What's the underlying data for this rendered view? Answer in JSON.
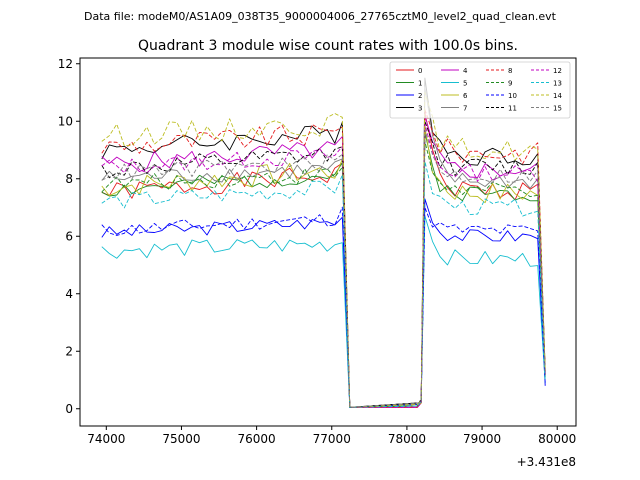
{
  "figure": {
    "suptitle": "Data file: modeM0/AS1A09_038T35_9000004006_27765cztM0_level2_quad_clean.evt",
    "title": "Quadrant 3 module wise count rates with 100.0s bins.",
    "offset_label": "+3.431e8"
  },
  "chart_data": {
    "type": "line",
    "title": "Quadrant 3 module wise count rates with 100.0s bins.",
    "xlabel": "",
    "ylabel": "",
    "x_offset": 343100000,
    "xlim": [
      73650,
      80250
    ],
    "ylim": [
      -0.6,
      12.2
    ],
    "xticks": [
      74000,
      75000,
      76000,
      77000,
      78000,
      79000,
      80000
    ],
    "yticks": [
      0,
      2,
      4,
      6,
      8,
      10,
      12
    ],
    "grid": false,
    "legend_position": "upper-right",
    "segments": [
      {
        "x_start": 73940,
        "step": 100,
        "count": 33
      },
      {
        "x_start": 78240,
        "step": 100,
        "count": 17
      }
    ],
    "gap": {
      "x": [
        77240,
        78140
      ],
      "values": [
        0.05,
        0.2
      ],
      "end_values": [
        0.6,
        1.5
      ]
    },
    "series": [
      {
        "name": "0",
        "color": "#e41a1c",
        "dash": "solid",
        "level": 7.5,
        "edge": 8.6,
        "post": 7.6,
        "amp": 0.35,
        "end": 1.2,
        "spike": 10.3,
        "seed": 1
      },
      {
        "name": "1",
        "color": "#228b22",
        "dash": "solid",
        "level": 7.6,
        "edge": 8.5,
        "post": 7.5,
        "amp": 0.3,
        "end": 1.1,
        "spike": 9.6,
        "seed": 2
      },
      {
        "name": "2",
        "color": "#0000ff",
        "dash": "solid",
        "level": 6.1,
        "edge": 6.8,
        "post": 6.0,
        "amp": 0.25,
        "end": 0.8,
        "spike": 7.3,
        "seed": 3
      },
      {
        "name": "3",
        "color": "#000000",
        "dash": "solid",
        "level": 9.0,
        "edge": 10.0,
        "post": 8.8,
        "amp": 0.35,
        "end": 1.3,
        "spike": 11.5,
        "seed": 4
      },
      {
        "name": "4",
        "color": "#c000c0",
        "dash": "solid",
        "level": 8.5,
        "edge": 9.4,
        "post": 8.3,
        "amp": 0.35,
        "end": 1.2,
        "spike": 10.2,
        "seed": 5
      },
      {
        "name": "5",
        "color": "#17becf",
        "dash": "solid",
        "level": 5.5,
        "edge": 5.9,
        "post": 5.2,
        "amp": 0.3,
        "end": 0.9,
        "spike": 6.7,
        "seed": 6
      },
      {
        "name": "6",
        "color": "#bcbd22",
        "dash": "solid",
        "level": 7.7,
        "edge": 8.7,
        "post": 7.5,
        "amp": 0.4,
        "end": 1.1,
        "spike": 9.8,
        "seed": 7
      },
      {
        "name": "7",
        "color": "#7f7f7f",
        "dash": "solid",
        "level": 8.0,
        "edge": 8.6,
        "post": 7.9,
        "amp": 0.3,
        "end": 1.2,
        "spike": 11.2,
        "seed": 8
      },
      {
        "name": "8",
        "color": "#e41a1c",
        "dash": "dashed",
        "level": 9.1,
        "edge": 9.9,
        "post": 8.9,
        "amp": 0.4,
        "end": 1.3,
        "spike": 10.4,
        "seed": 9
      },
      {
        "name": "9",
        "color": "#228b22",
        "dash": "dashed",
        "level": 7.8,
        "edge": 8.4,
        "post": 7.6,
        "amp": 0.3,
        "end": 1.1,
        "spike": 9.3,
        "seed": 10
      },
      {
        "name": "10",
        "color": "#0000ff",
        "dash": "dashed",
        "level": 6.2,
        "edge": 6.9,
        "post": 6.2,
        "amp": 0.25,
        "end": 0.9,
        "spike": 7.0,
        "seed": 11
      },
      {
        "name": "11",
        "color": "#000000",
        "dash": "dashed",
        "level": 8.3,
        "edge": 9.2,
        "post": 8.4,
        "amp": 0.35,
        "end": 1.2,
        "spike": 10.0,
        "seed": 12
      },
      {
        "name": "12",
        "color": "#c000c0",
        "dash": "dashed",
        "level": 8.4,
        "edge": 9.1,
        "post": 8.2,
        "amp": 0.3,
        "end": 1.2,
        "spike": 9.9,
        "seed": 13
      },
      {
        "name": "13",
        "color": "#17becf",
        "dash": "dashed",
        "level": 7.2,
        "edge": 8.0,
        "post": 7.0,
        "amp": 0.3,
        "end": 1.0,
        "spike": 8.6,
        "seed": 14
      },
      {
        "name": "14",
        "color": "#bcbd22",
        "dash": "dashed",
        "level": 9.5,
        "edge": 10.2,
        "post": 9.0,
        "amp": 0.4,
        "end": 1.4,
        "spike": 11.0,
        "seed": 15
      },
      {
        "name": "15",
        "color": "#7f7f7f",
        "dash": "dashed",
        "level": 8.2,
        "edge": 8.8,
        "post": 8.1,
        "amp": 0.3,
        "end": 1.2,
        "spike": 9.7,
        "seed": 16
      }
    ]
  }
}
